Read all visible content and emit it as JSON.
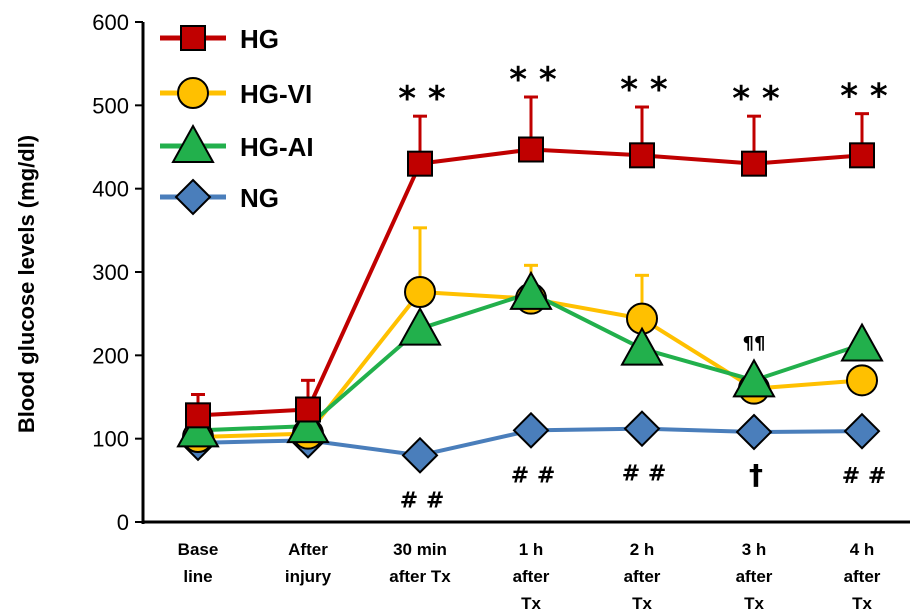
{
  "chart_data": {
    "type": "line",
    "title": "",
    "xlabel": "",
    "ylabel": "Blood glucose levels (mg/dl)",
    "ylim": [
      0,
      600
    ],
    "yticks": [
      "0",
      "100",
      "200",
      "300",
      "400",
      "500",
      "600"
    ],
    "categories": [
      [
        "Base",
        "line"
      ],
      [
        "After",
        "injury"
      ],
      [
        "30 min",
        "after Tx"
      ],
      [
        "1 h",
        "after",
        "Tx"
      ],
      [
        "2 h",
        "after",
        "Tx"
      ],
      [
        "3 h",
        "after",
        "Tx"
      ],
      [
        "4 h",
        "after",
        "Tx"
      ]
    ],
    "legend_position": "top-left",
    "grid": false,
    "series": [
      {
        "name": "HG",
        "color": "#c00000",
        "marker": "square",
        "values": [
          128,
          135,
          430,
          447,
          440,
          430,
          440
        ],
        "error": [
          25,
          35,
          57,
          63,
          58,
          57,
          50
        ]
      },
      {
        "name": "HG-VI",
        "color": "#ffc000",
        "marker": "circle",
        "values": [
          102,
          106,
          276,
          268,
          244,
          160,
          170
        ],
        "error": [
          0,
          0,
          77,
          40,
          52,
          0,
          0
        ]
      },
      {
        "name": "HG-AI",
        "color": "#22b04c",
        "marker": "triangle",
        "values": [
          110,
          115,
          232,
          275,
          208,
          170,
          213
        ],
        "error": [
          0,
          0,
          0,
          0,
          0,
          0,
          0
        ]
      },
      {
        "name": "NG",
        "color": "#4a7ebb",
        "marker": "diamond",
        "values": [
          95,
          98,
          80,
          110,
          112,
          108,
          109
        ],
        "error": [
          0,
          0,
          0,
          0,
          0,
          0,
          0
        ]
      }
    ],
    "annotations": {
      "above": [
        "",
        "",
        "* *",
        "* *",
        "* *",
        "* *",
        "* *"
      ],
      "below": [
        "",
        "",
        "# #",
        "# #",
        "# #",
        "†",
        "# #"
      ],
      "pilcrow": [
        "",
        "",
        "",
        "",
        "",
        "¶¶",
        ""
      ]
    }
  }
}
